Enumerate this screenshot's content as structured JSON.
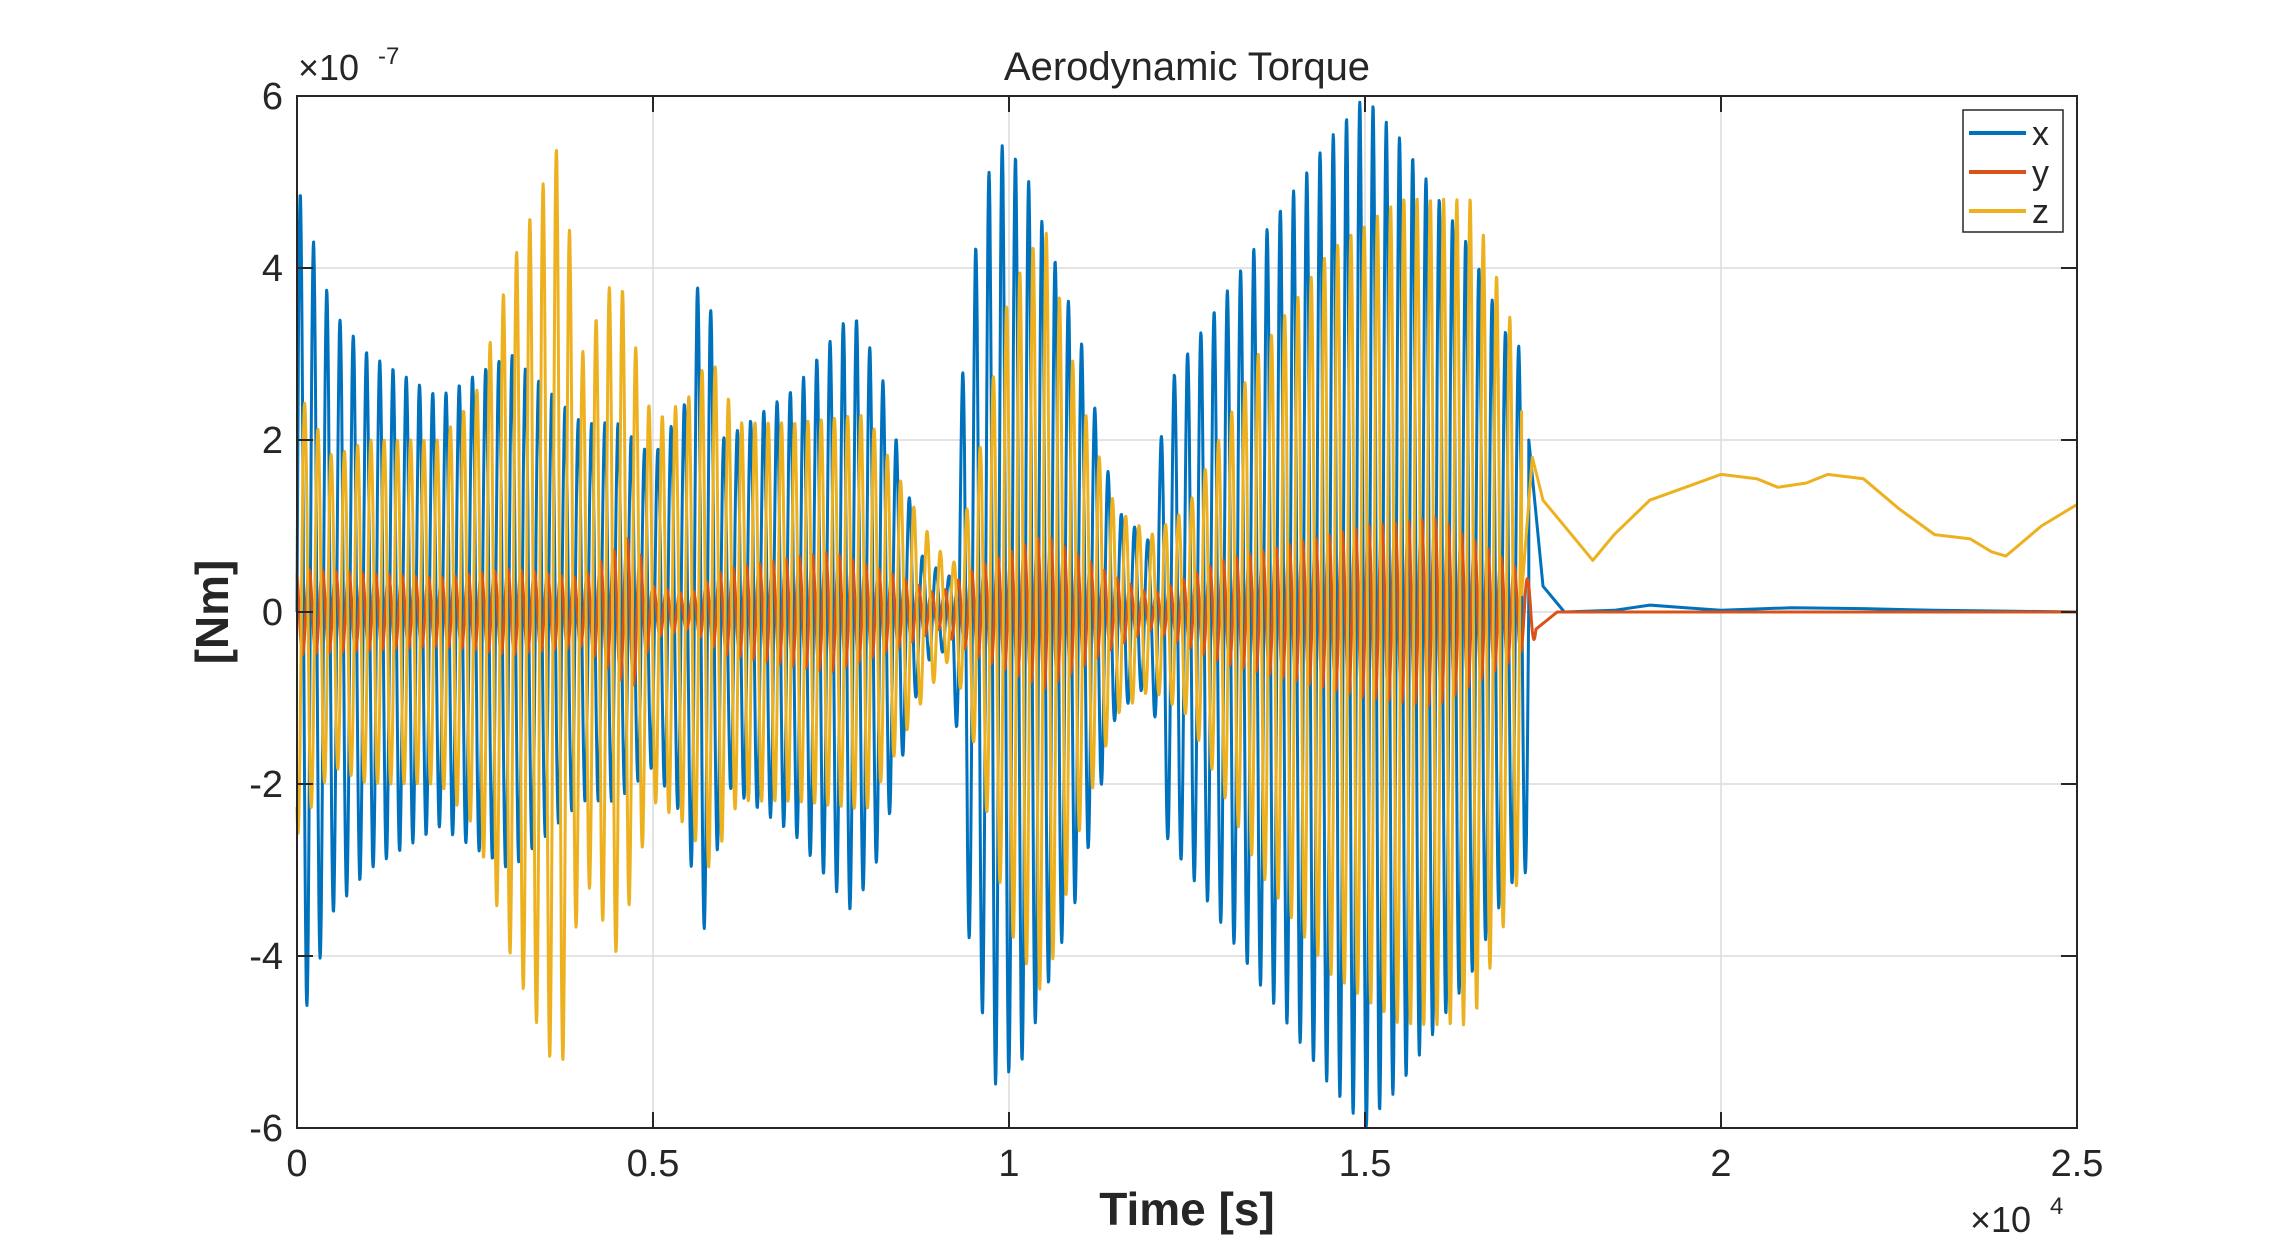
{
  "chart_data": {
    "type": "line",
    "title": "Aerodynamic Torque",
    "xlabel": "Time [s]",
    "ylabel": "[Nm]",
    "x_exponent_base": "×10",
    "x_exponent_power": "4",
    "y_exponent_base": "×10",
    "y_exponent_power": "-7",
    "xlim": [
      0,
      2.5
    ],
    "ylim": [
      -6,
      6
    ],
    "xticks": [
      0,
      0.5,
      1,
      1.5,
      2,
      2.5
    ],
    "xtick_labels": [
      "0",
      "0.5",
      "1",
      "1.5",
      "2",
      "2.5"
    ],
    "yticks": [
      -6,
      -4,
      -2,
      0,
      2,
      4,
      6
    ],
    "ytick_labels": [
      "-6",
      "-4",
      "-2",
      "0",
      "2",
      "4",
      "6"
    ],
    "grid": true,
    "legend_position": "top-right",
    "series": [
      {
        "name": "x",
        "color": "#0072BD",
        "oscillating_segment": {
          "x_start": 0,
          "x_end": 1.73,
          "period": 0.0186,
          "offset": 0,
          "envelope": [
            [
              0,
              5.0
            ],
            [
              0.05,
              3.5
            ],
            [
              0.1,
              3.0
            ],
            [
              0.2,
              2.5
            ],
            [
              0.3,
              3.0
            ],
            [
              0.4,
              2.2
            ],
            [
              0.45,
              2.2
            ],
            [
              0.5,
              1.8
            ],
            [
              0.55,
              2.5
            ],
            [
              0.56,
              3.8
            ],
            [
              0.58,
              3.6
            ],
            [
              0.6,
              2.0
            ],
            [
              0.7,
              2.6
            ],
            [
              0.78,
              3.5
            ],
            [
              0.82,
              2.8
            ],
            [
              0.88,
              0.6
            ],
            [
              0.92,
              0.4
            ],
            [
              0.94,
              3.6
            ],
            [
              0.98,
              5.5
            ],
            [
              1.02,
              5.2
            ],
            [
              1.1,
              3.2
            ],
            [
              1.15,
              1.2
            ],
            [
              1.2,
              0.8
            ],
            [
              1.22,
              2.6
            ],
            [
              1.35,
              4.3
            ],
            [
              1.45,
              5.5
            ],
            [
              1.5,
              6.0
            ],
            [
              1.55,
              5.5
            ],
            [
              1.65,
              4.2
            ],
            [
              1.7,
              3.2
            ],
            [
              1.73,
              3.0
            ]
          ]
        },
        "tail": [
          [
            1.73,
            2.0
          ],
          [
            1.75,
            0.3
          ],
          [
            1.78,
            0.0
          ],
          [
            1.85,
            0.02
          ],
          [
            1.9,
            0.08
          ],
          [
            1.95,
            0.05
          ],
          [
            2.0,
            0.02
          ],
          [
            2.1,
            0.05
          ],
          [
            2.2,
            0.04
          ],
          [
            2.3,
            0.02
          ],
          [
            2.4,
            0.01
          ],
          [
            2.5,
            0.0
          ]
        ]
      },
      {
        "name": "y",
        "color": "#D95319",
        "oscillating_segment": {
          "x_start": 0,
          "x_end": 1.74,
          "period": 0.0186,
          "offset": 0,
          "envelope": [
            [
              0,
              0.5
            ],
            [
              0.2,
              0.4
            ],
            [
              0.3,
              0.5
            ],
            [
              0.4,
              0.4
            ],
            [
              0.47,
              0.9
            ],
            [
              0.5,
              0.3
            ],
            [
              0.55,
              0.2
            ],
            [
              0.6,
              0.5
            ],
            [
              0.75,
              0.7
            ],
            [
              0.85,
              0.4
            ],
            [
              0.9,
              0.2
            ],
            [
              0.95,
              0.5
            ],
            [
              1.05,
              0.9
            ],
            [
              1.15,
              0.4
            ],
            [
              1.2,
              0.2
            ],
            [
              1.3,
              0.6
            ],
            [
              1.5,
              1.0
            ],
            [
              1.6,
              1.1
            ],
            [
              1.7,
              0.6
            ],
            [
              1.74,
              0.3
            ]
          ]
        },
        "tail": [
          [
            1.74,
            -0.2
          ],
          [
            1.77,
            0.0
          ],
          [
            2.5,
            0.0
          ]
        ]
      },
      {
        "name": "z",
        "color": "#EDB120",
        "oscillating_segment": {
          "x_start": 0,
          "x_end": 1.72,
          "period": 0.0186,
          "offset": 0,
          "envelope": [
            [
              0,
              2.6
            ],
            [
              0.05,
              1.8
            ],
            [
              0.1,
              2.0
            ],
            [
              0.2,
              2.0
            ],
            [
              0.25,
              2.5
            ],
            [
              0.3,
              4.0
            ],
            [
              0.37,
              5.5
            ],
            [
              0.4,
              3.0
            ],
            [
              0.45,
              4.0
            ],
            [
              0.5,
              2.2
            ],
            [
              0.55,
              2.5
            ],
            [
              0.58,
              3.0
            ],
            [
              0.62,
              2.2
            ],
            [
              0.7,
              2.2
            ],
            [
              0.8,
              2.3
            ],
            [
              0.88,
              1.0
            ],
            [
              0.92,
              0.5
            ],
            [
              0.95,
              1.5
            ],
            [
              1.0,
              3.7
            ],
            [
              1.05,
              4.5
            ],
            [
              1.1,
              2.5
            ],
            [
              1.15,
              1.2
            ],
            [
              1.2,
              0.9
            ],
            [
              1.25,
              1.2
            ],
            [
              1.35,
              3.0
            ],
            [
              1.45,
              4.2
            ],
            [
              1.55,
              4.8
            ],
            [
              1.65,
              4.8
            ],
            [
              1.72,
              3.0
            ]
          ]
        },
        "tail": [
          [
            1.72,
            0.2
          ],
          [
            1.735,
            1.8
          ],
          [
            1.75,
            1.3
          ],
          [
            1.8,
            0.8
          ],
          [
            1.82,
            0.6
          ],
          [
            1.85,
            0.9
          ],
          [
            1.9,
            1.3
          ],
          [
            1.95,
            1.45
          ],
          [
            2.0,
            1.6
          ],
          [
            2.05,
            1.55
          ],
          [
            2.08,
            1.45
          ],
          [
            2.12,
            1.5
          ],
          [
            2.15,
            1.6
          ],
          [
            2.2,
            1.55
          ],
          [
            2.25,
            1.2
          ],
          [
            2.3,
            0.9
          ],
          [
            2.35,
            0.85
          ],
          [
            2.38,
            0.7
          ],
          [
            2.4,
            0.65
          ],
          [
            2.45,
            1.0
          ],
          [
            2.5,
            1.25
          ]
        ]
      }
    ]
  }
}
